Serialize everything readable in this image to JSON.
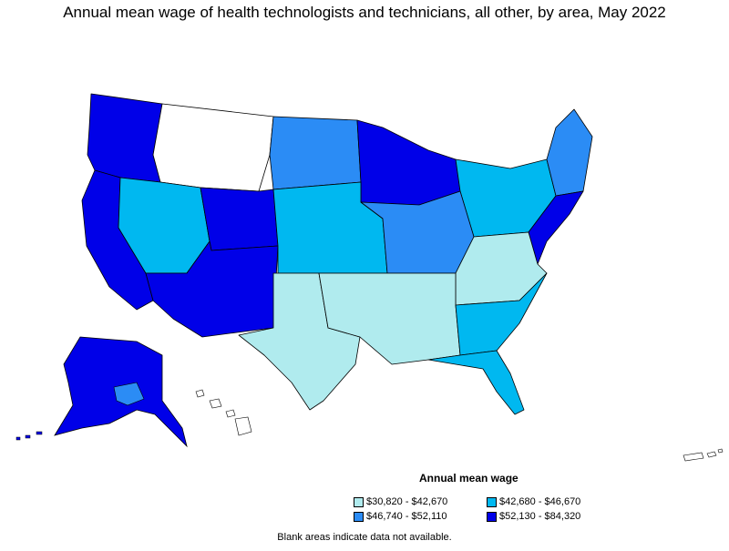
{
  "title": "Annual mean wage of health technologists and technicians, all other, by area, May 2022",
  "legend": {
    "title": "Annual mean wage",
    "items": [
      {
        "label": "$30,820 - $42,670",
        "color": "#b0ebee"
      },
      {
        "label": "$42,680 - $46,670",
        "color": "#00b8f0"
      },
      {
        "label": "$46,740 - $52,110",
        "color": "#2b8cf5"
      },
      {
        "label": "$52,130 - $84,320",
        "color": "#0000e8"
      }
    ]
  },
  "note": "Blank areas indicate data not available.",
  "colors": {
    "no_data": "#ffffff",
    "border": "#000000"
  }
}
